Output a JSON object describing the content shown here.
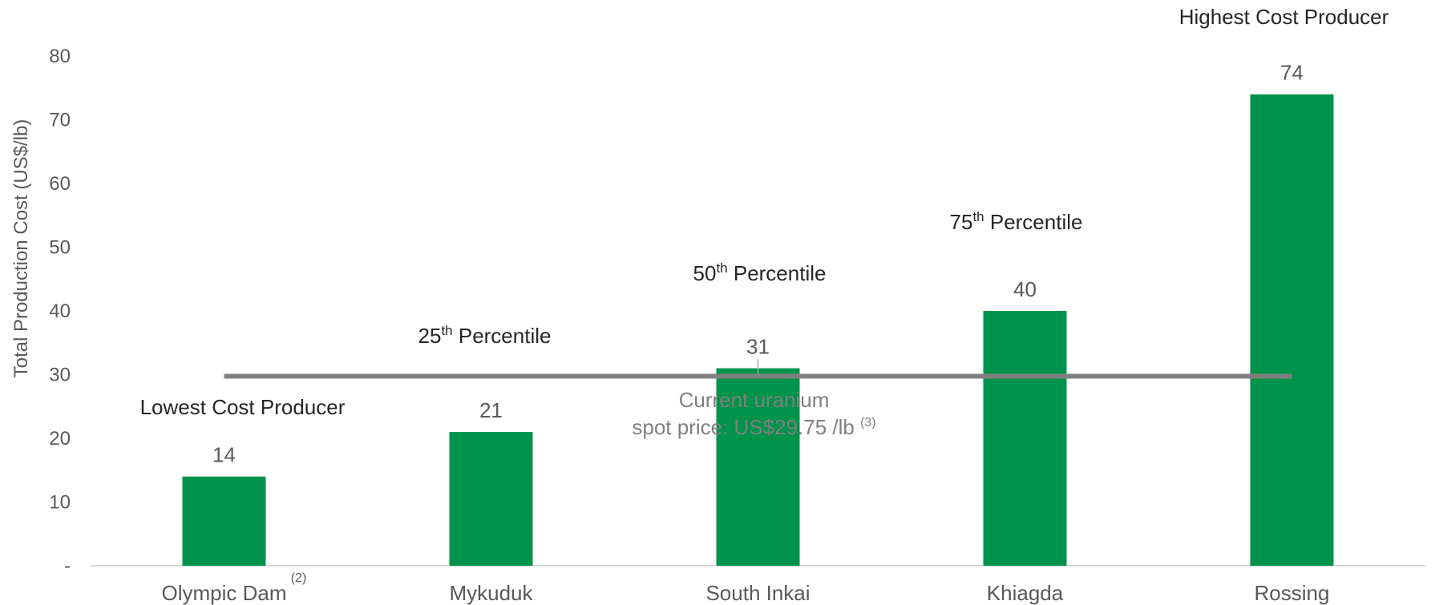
{
  "chart_data": {
    "type": "bar",
    "categories": [
      "Olympic Dam",
      "Mykuduk",
      "South Inkai",
      "Khiagda",
      "Rossing"
    ],
    "category_footnotes": [
      "(2)",
      "",
      "",
      "",
      ""
    ],
    "values": [
      14,
      21,
      31,
      40,
      74
    ],
    "value_labels": [
      "14",
      "21",
      "31",
      "40",
      "74"
    ],
    "ylabel": "Total Production Cost (US$/lb)",
    "ylim": [
      0,
      80
    ],
    "yticks": [
      0,
      10,
      20,
      30,
      40,
      50,
      60,
      70,
      80
    ],
    "ytick_labels": [
      "-",
      "10",
      "20",
      "30",
      "40",
      "50",
      "60",
      "70",
      "80"
    ],
    "bar_color": "#00934B",
    "reference_line": {
      "value": 29.75,
      "color": "#7F7F7F",
      "label_line1": "Current uranium",
      "label_line2": "spot price: US$29.75 /lb",
      "label_footnote": "(3)"
    },
    "annotations": [
      {
        "anchor": "Olympic Dam",
        "text": "Lowest Cost Producer",
        "sup": "",
        "suffix": ""
      },
      {
        "anchor": "Mykuduk",
        "text": "25",
        "sup": "th",
        "suffix": " Percentile"
      },
      {
        "anchor": "South Inkai",
        "text": "50",
        "sup": "th",
        "suffix": " Percentile"
      },
      {
        "anchor": "Khiagda",
        "text": "75",
        "sup": "th",
        "suffix": " Percentile"
      },
      {
        "anchor": "Rossing",
        "text": "Highest Cost Producer",
        "sup": "",
        "suffix": ""
      }
    ],
    "grid": false,
    "legend": "none"
  }
}
